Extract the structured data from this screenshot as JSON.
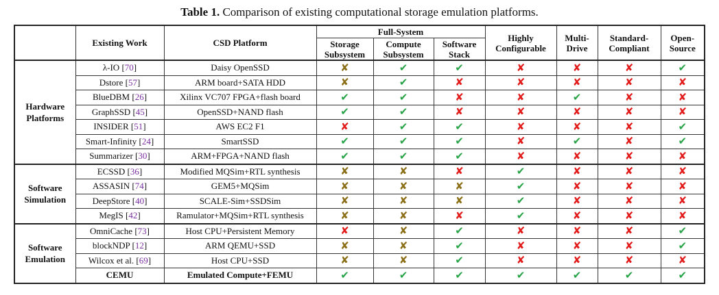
{
  "caption": {
    "label": "Table 1.",
    "text": "Comparison of existing computational storage emulation platforms."
  },
  "headers": {
    "existing_work": "Existing Work",
    "csd_platform": "CSD Platform",
    "full_system": "Full-System",
    "storage": "Storage Subsystem",
    "compute": "Compute Subsystem",
    "software": "Software Stack",
    "configurable": "Highly Configurable",
    "multidrive": "Multi-Drive",
    "standard": "Standard-Compliant",
    "opensource": "Open-Source"
  },
  "legend_icons": {
    "yes": "check-mark",
    "no": "cross-mark",
    "partial": "partial-check-mark"
  },
  "colors": {
    "yes": "#27a347",
    "no": "#e21b1b",
    "partial": "#8b6f16"
  },
  "groups": [
    {
      "name": "Hardware Platforms",
      "rows": [
        {
          "work": "λ-IO",
          "ref": "70",
          "platform": "Daisy OpenSSD",
          "marks": [
            "partial",
            "yes",
            "yes",
            "no",
            "no",
            "no",
            "yes"
          ]
        },
        {
          "work": "Dstore",
          "ref": "57",
          "platform": "ARM board+SATA HDD",
          "marks": [
            "partial",
            "yes",
            "no",
            "no",
            "no",
            "no",
            "no"
          ]
        },
        {
          "work": "BlueDBM",
          "ref": "26",
          "platform": "Xilinx VC707 FPGA+flash board",
          "marks": [
            "yes",
            "yes",
            "no",
            "no",
            "yes",
            "no",
            "no"
          ]
        },
        {
          "work": "GraphSSD",
          "ref": "45",
          "platform": "OpenSSD+NAND flash",
          "marks": [
            "yes",
            "yes",
            "no",
            "no",
            "no",
            "no",
            "no"
          ]
        },
        {
          "work": "INSIDER",
          "ref": "51",
          "platform": "AWS EC2 F1",
          "marks": [
            "no",
            "yes",
            "yes",
            "no",
            "no",
            "no",
            "yes"
          ]
        },
        {
          "work": "Smart-Infinity",
          "ref": "24",
          "platform": "SmartSSD",
          "marks": [
            "yes",
            "yes",
            "yes",
            "no",
            "yes",
            "no",
            "yes"
          ]
        },
        {
          "work": "Summarizer",
          "ref": "30",
          "platform": "ARM+FPGA+NAND flash",
          "marks": [
            "yes",
            "yes",
            "yes",
            "no",
            "no",
            "no",
            "no"
          ]
        }
      ]
    },
    {
      "name": "Software Simulation",
      "rows": [
        {
          "work": "ECSSD",
          "ref": "36",
          "platform": "Modified MQSim+RTL synthesis",
          "marks": [
            "partial",
            "partial",
            "no",
            "yes",
            "no",
            "no",
            "no"
          ]
        },
        {
          "work": "ASSASIN",
          "ref": "74",
          "platform": "GEM5+MQSim",
          "marks": [
            "partial",
            "partial",
            "partial",
            "yes",
            "no",
            "no",
            "no"
          ]
        },
        {
          "work": "DeepStore",
          "ref": "40",
          "platform": "SCALE-Sim+SSDSim",
          "marks": [
            "partial",
            "partial",
            "partial",
            "yes",
            "no",
            "no",
            "no"
          ]
        },
        {
          "work": "MegIS",
          "ref": "42",
          "platform": "Ramulator+MQSim+RTL synthesis",
          "marks": [
            "partial",
            "partial",
            "no",
            "yes",
            "no",
            "no",
            "no"
          ]
        }
      ]
    },
    {
      "name": "Software Emulation",
      "rows": [
        {
          "work": "OmniCache",
          "ref": "73",
          "platform": "Host CPU+Persistent Memory",
          "marks": [
            "no",
            "partial",
            "yes",
            "no",
            "no",
            "no",
            "yes"
          ]
        },
        {
          "work": "blockNDP",
          "ref": "12",
          "platform": "ARM QEMU+SSD",
          "marks": [
            "partial",
            "partial",
            "yes",
            "no",
            "no",
            "no",
            "yes"
          ]
        },
        {
          "work": "Wilcox et al.",
          "ref": "69",
          "platform": "Host CPU+SSD",
          "marks": [
            "partial",
            "partial",
            "yes",
            "no",
            "no",
            "no",
            "no"
          ]
        },
        {
          "work": "CEMU",
          "ref": "",
          "platform": "Emulated Compute+FEMU",
          "marks": [
            "yes",
            "yes",
            "yes",
            "yes",
            "yes",
            "yes",
            "yes"
          ],
          "bold": true
        }
      ]
    }
  ]
}
